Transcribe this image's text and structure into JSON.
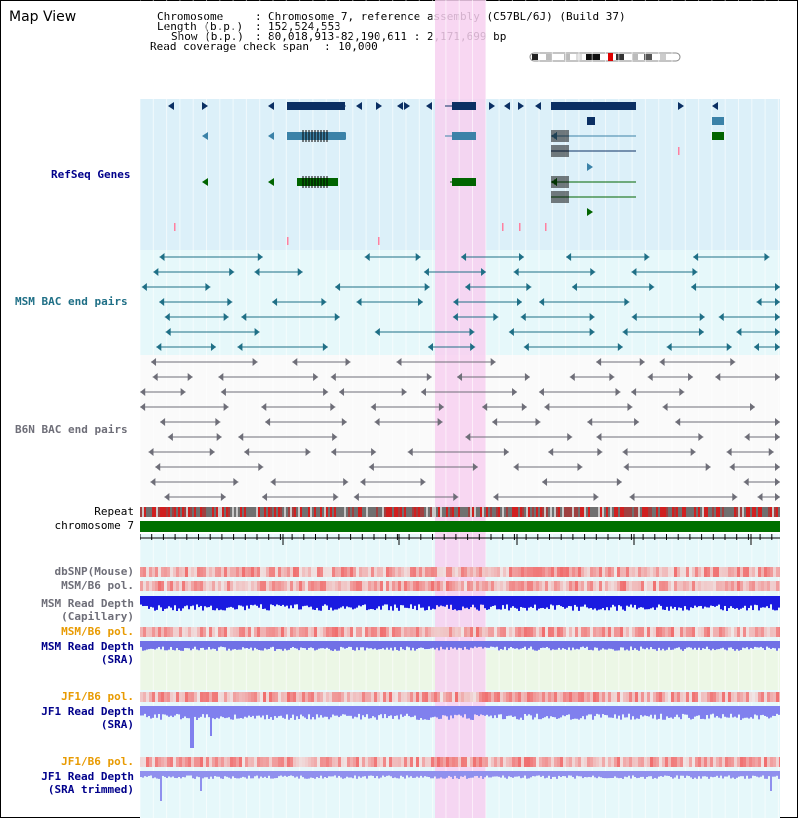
{
  "header": {
    "title": "Map View",
    "chromosome_key": "Chromosome",
    "chromosome_value": "Chromosome 7, reference assembly (C57BL/6J) (Build 37)",
    "length_key": "Length (b.p.)",
    "length_value": "152,524,553",
    "show_key": "Show (b.p.)",
    "show_value": "80,018,913-82,190,611 : 2,171,699 bp",
    "coverage_key": "Read coverage check span",
    "coverage_value": "10,000"
  },
  "tracks": {
    "refseq": "RefSeq Genes",
    "msm_bac": "MSM BAC end pairs",
    "b6n_bac": "B6N BAC end pairs",
    "repeat": "Repeat",
    "chromosome": "chromosome 7",
    "dbsnp": "dbSNP(Mouse)",
    "msm_b6_pol": "MSM/B6 pol.",
    "msm_depth_cap_1": "MSM Read Depth",
    "msm_depth_cap_2": "(Capillary)",
    "msm_b6_pol2": "MSM/B6 pol.",
    "msm_depth_sra_1": "MSM Read Depth",
    "msm_depth_sra_2": "(SRA)",
    "jf1_b6_pol": "JF1/B6 pol.",
    "jf1_depth_sra_1": "JF1 Read Depth",
    "jf1_depth_sra_2": "(SRA)",
    "jf1_b6_pol2": "JF1/B6 pol.",
    "jf1_depth_trim_1": "JF1 Read Depth",
    "jf1_depth_trim_2": "(SRA trimmed)"
  },
  "axis": {
    "ticks": [
      "80400000",
      "80800000",
      "81200000",
      "81600000",
      "82000000"
    ]
  },
  "colors": {
    "refseq_bg": "#dcf0f9",
    "msm_bg": "#e6f8fa",
    "highlight": "#f7d0f0",
    "gene_dark": "#0b2f63",
    "gene_mid": "#3b82a8",
    "gene_green": "#006400",
    "bac_teal": "#1f6f86",
    "bac_gray": "#6e6e78",
    "chrom_green": "#007000",
    "depth_blue_dark": "#1a1ae0",
    "depth_blue_light": "#8080ee",
    "snp_red": "#f05050"
  }
}
